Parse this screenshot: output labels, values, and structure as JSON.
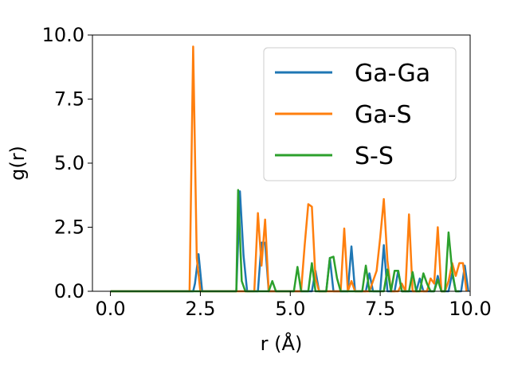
{
  "chart_data": {
    "type": "line",
    "xlabel": "r (Å)",
    "ylabel": "g(r)",
    "xlim": [
      -0.5,
      10.0
    ],
    "ylim": [
      0.0,
      10.0
    ],
    "xticks": [
      "0.0",
      "2.5",
      "5.0",
      "7.5",
      "10.0"
    ],
    "yticks": [
      "0.0",
      "2.5",
      "5.0",
      "7.5",
      "10.0"
    ],
    "grid": false,
    "legend_position": "top-right",
    "series": [
      {
        "name": "Ga-Ga",
        "color": "#1f77b4",
        "x": [
          0.0,
          2.3,
          2.35,
          2.45,
          2.55,
          3.5,
          3.6,
          3.7,
          3.8,
          4.1,
          4.2,
          4.3,
          4.4,
          5.6,
          5.7,
          5.8,
          6.0,
          6.1,
          6.2,
          6.3,
          6.6,
          6.7,
          6.8,
          7.1,
          7.2,
          7.3,
          7.5,
          7.6,
          7.7,
          7.9,
          8.0,
          8.1,
          8.5,
          8.6,
          8.7,
          9.0,
          9.1,
          9.2,
          9.4,
          9.5,
          9.6,
          9.75,
          9.85,
          9.95
        ],
        "y": [
          0.0,
          0.0,
          0.3,
          1.45,
          0.0,
          0.0,
          3.9,
          1.4,
          0.0,
          0.0,
          1.9,
          1.9,
          0.0,
          0.0,
          0.8,
          0.0,
          0.0,
          1.3,
          0.0,
          0.0,
          0.0,
          1.75,
          0.0,
          0.0,
          0.7,
          0.0,
          0.0,
          1.8,
          0.0,
          0.0,
          0.8,
          0.0,
          0.0,
          0.5,
          0.0,
          0.0,
          0.6,
          0.0,
          0.0,
          0.7,
          0.0,
          0.0,
          1.0,
          0.0
        ]
      },
      {
        "name": "Ga-S",
        "color": "#ff7f0e",
        "x": [
          0.0,
          2.1,
          2.2,
          2.3,
          2.4,
          2.5,
          3.9,
          4.0,
          4.1,
          4.2,
          4.3,
          4.4,
          5.2,
          5.3,
          5.4,
          5.5,
          5.6,
          5.7,
          5.8,
          6.3,
          6.4,
          6.5,
          6.6,
          6.7,
          6.8,
          7.2,
          7.3,
          7.4,
          7.5,
          7.6,
          7.7,
          7.8,
          8.0,
          8.1,
          8.2,
          8.3,
          8.4,
          8.8,
          8.9,
          9.0,
          9.1,
          9.2,
          9.3,
          9.4,
          9.5,
          9.6,
          9.7,
          9.8,
          9.9
        ],
        "y": [
          0.0,
          0.0,
          0.0,
          9.55,
          1.3,
          0.0,
          0.0,
          0.0,
          3.05,
          1.0,
          2.8,
          0.0,
          0.0,
          0.0,
          1.8,
          3.4,
          3.3,
          0.5,
          0.0,
          0.0,
          0.0,
          2.45,
          0.0,
          0.4,
          0.0,
          0.0,
          0.4,
          0.8,
          2.1,
          3.6,
          1.2,
          0.0,
          0.0,
          0.3,
          0.0,
          3.0,
          0.0,
          0.0,
          0.5,
          0.3,
          2.5,
          0.0,
          0.0,
          0.4,
          1.1,
          0.6,
          1.1,
          1.1,
          0.0
        ]
      },
      {
        "name": "S-S",
        "color": "#2ca02c",
        "x": [
          0.0,
          3.4,
          3.5,
          3.55,
          3.65,
          3.75,
          4.3,
          4.4,
          4.5,
          4.6,
          5.1,
          5.2,
          5.3,
          5.5,
          5.6,
          5.7,
          6.0,
          6.1,
          6.2,
          6.3,
          6.4,
          6.9,
          7.0,
          7.1,
          7.2,
          7.3,
          7.4,
          7.6,
          7.7,
          7.8,
          7.9,
          8.0,
          8.1,
          8.3,
          8.4,
          8.5,
          8.6,
          8.7,
          8.8,
          8.9,
          9.0,
          9.1,
          9.2,
          9.3,
          9.4,
          9.5,
          9.6,
          9.7
        ],
        "y": [
          0.0,
          0.0,
          0.0,
          3.95,
          0.4,
          0.0,
          0.0,
          0.0,
          0.4,
          0.0,
          0.0,
          0.95,
          0.0,
          0.0,
          1.1,
          0.0,
          0.0,
          1.3,
          1.35,
          0.5,
          0.0,
          0.0,
          0.0,
          1.0,
          0.0,
          0.0,
          0.0,
          0.0,
          0.85,
          0.0,
          0.8,
          0.8,
          0.0,
          0.0,
          0.75,
          0.0,
          0.0,
          0.7,
          0.3,
          0.0,
          0.0,
          0.45,
          0.0,
          0.0,
          2.3,
          0.8,
          0.0,
          0.0
        ]
      }
    ]
  }
}
